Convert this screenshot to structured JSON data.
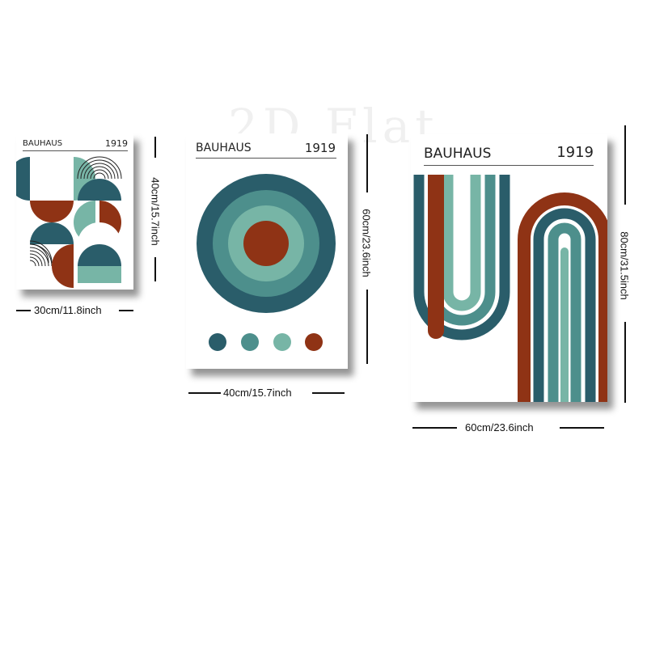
{
  "watermark": "2D Flat",
  "colors": {
    "teal_dark": "#2a5d6a",
    "teal_mid": "#4d8f8c",
    "teal_light": "#77b5a6",
    "rust": "#8f3315",
    "white": "#ffffff"
  },
  "posters": [
    {
      "brand": "BAUHAUS",
      "year": "1919",
      "width_label": "30cm/11.8inch",
      "height_label": "40cm/15.7inch"
    },
    {
      "brand": "BAUHAUS",
      "year": "1919",
      "width_label": "40cm/15.7inch",
      "height_label": "60cm/23.6inch"
    },
    {
      "brand": "BAUHAUS",
      "year": "1919",
      "width_label": "60cm/23.6inch",
      "height_label": "80cm/31.5inch"
    }
  ]
}
